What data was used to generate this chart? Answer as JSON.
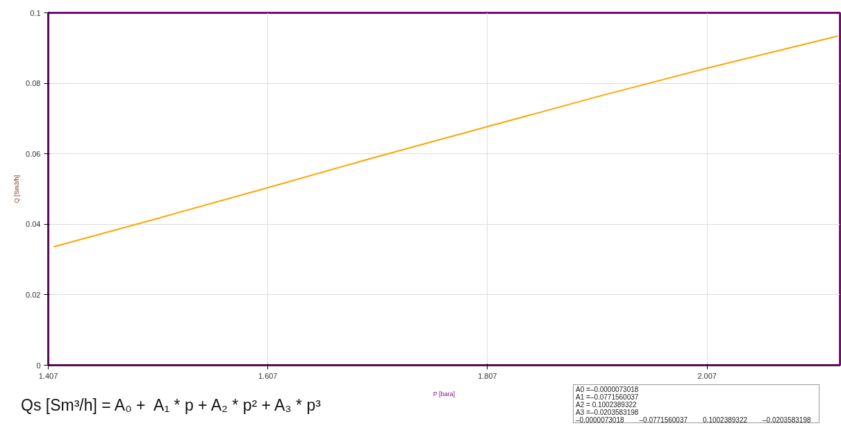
{
  "chart_data": {
    "type": "line",
    "xlabel": "P [bara]",
    "ylabel": "Q [Sm3/h]",
    "x": [
      1.412,
      1.507,
      1.607,
      1.707,
      1.807,
      1.907,
      2.007,
      2.126
    ],
    "series": [
      {
        "color": "#ffa500",
        "values": [
          0.0336,
          0.0417,
          0.0504,
          0.0592,
          0.0677,
          0.0762,
          0.0843,
          0.0934
        ]
      }
    ],
    "xlim": [
      1.407,
      2.128
    ],
    "ylim": [
      0,
      0.1
    ],
    "xticks": [
      1.407,
      1.607,
      1.807,
      2.007
    ],
    "yticks": [
      0,
      0.02,
      0.04,
      0.06,
      0.08,
      0.1
    ],
    "grid": true,
    "marker": "none",
    "line_style": "solid",
    "annotations": [
      "Qs [Sm³/h] = A₀ +  A₁ * p + A₂ * p² + A₃ * p³",
      "A0 =–0.0000073018",
      "A1 =–0.0771560037",
      "A2 = 0.1002389322",
      "A3 =–0.0203583198",
      "–0.0000073018",
      "–0.0771560037",
      "0.1002389322",
      "–0.0203583198"
    ]
  }
}
